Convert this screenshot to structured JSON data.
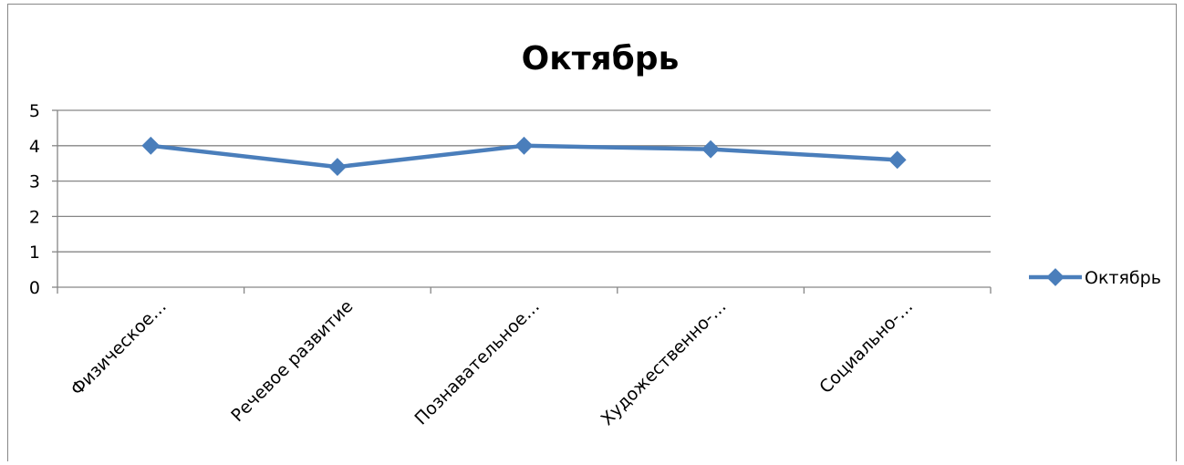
{
  "chart_data": {
    "type": "line",
    "title": "Октябрь",
    "categories": [
      "Физическое…",
      "Речевое развитие",
      "Познавательное…",
      "Художественно-…",
      "Социально-…"
    ],
    "series": [
      {
        "name": "Октябрь",
        "values": [
          4.0,
          3.4,
          4.0,
          3.9,
          3.6
        ]
      }
    ],
    "ylim": [
      0,
      5
    ],
    "yticks": [
      "0",
      "1",
      "2",
      "3",
      "4",
      "5"
    ],
    "grid": true,
    "legend": "right",
    "colors": {
      "series": "#4a7ebb",
      "grid": "#868686",
      "axis": "#868686"
    }
  }
}
